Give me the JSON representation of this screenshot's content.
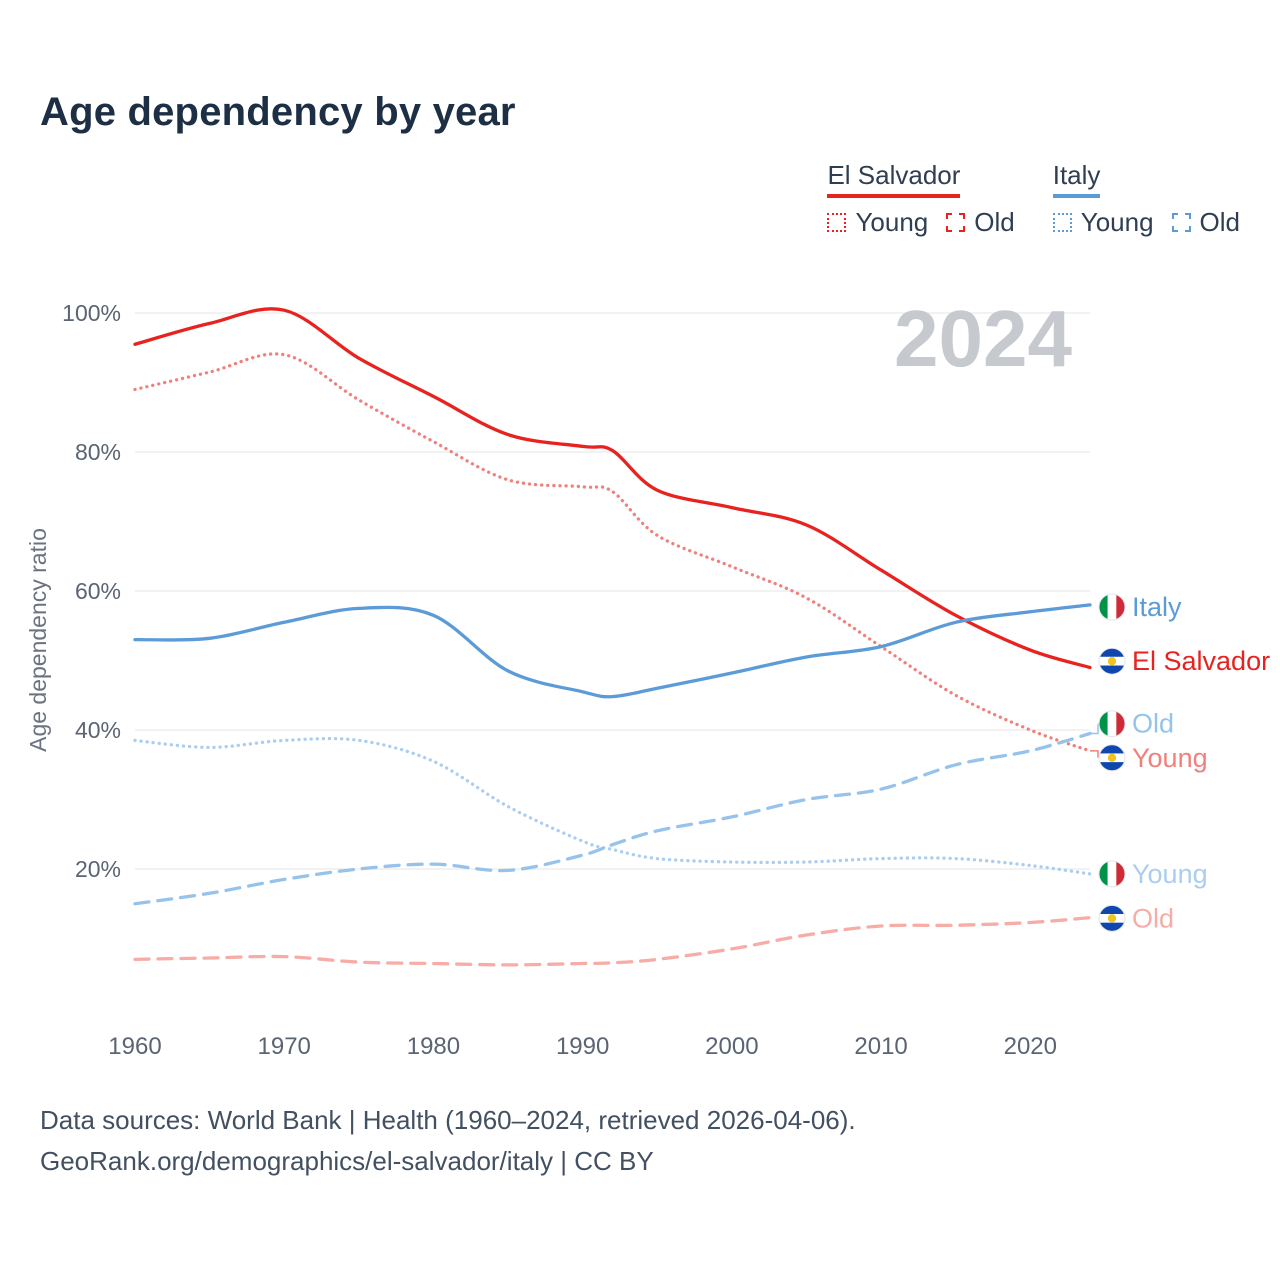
{
  "title": "Age dependency by year",
  "watermark": "2024",
  "legend": {
    "groups": [
      {
        "label": "El Salvador",
        "color": "#e8231f",
        "items": [
          {
            "label": "Young",
            "style": "dotted",
            "color": "#e8231f"
          },
          {
            "label": "Old",
            "style": "dashed",
            "color": "#e8231f"
          }
        ]
      },
      {
        "label": "Italy",
        "color": "#5b9bd8",
        "items": [
          {
            "label": "Young",
            "style": "dotted",
            "color": "#5b9bd8"
          },
          {
            "label": "Old",
            "style": "dashed",
            "color": "#5b9bd8"
          }
        ]
      }
    ]
  },
  "chart_data": {
    "type": "line",
    "title": "Age dependency by year",
    "ylabel": "Age dependency ratio",
    "xlabel": "",
    "ylim": [
      0,
      105
    ],
    "yticks": [
      20,
      40,
      60,
      80,
      100
    ],
    "xticks": [
      1960,
      1970,
      1980,
      1990,
      2000,
      2010,
      2020
    ],
    "grid": "horizontal",
    "legend_position": "top-right",
    "x": [
      1960,
      1965,
      1970,
      1975,
      1980,
      1985,
      1990,
      1992,
      1995,
      2000,
      2005,
      2010,
      2015,
      2020,
      2024
    ],
    "series": [
      {
        "name": "El Salvador total",
        "country": "El Salvador",
        "measure": "total",
        "color": "#e8231f",
        "style": "solid",
        "values": [
          95.5,
          98.5,
          100.4,
          93.5,
          88,
          82.5,
          80.8,
          80.2,
          74.5,
          72,
          69.5,
          63,
          56.5,
          51.5,
          49
        ]
      },
      {
        "name": "El Salvador young",
        "country": "El Salvador",
        "measure": "young",
        "color": "#f0807c",
        "style": "dotted",
        "values": [
          89,
          91.5,
          94,
          87.5,
          81.5,
          76,
          75,
          74.3,
          68,
          63.5,
          59,
          52,
          45,
          40,
          37
        ]
      },
      {
        "name": "El Salvador old",
        "country": "El Salvador",
        "measure": "old",
        "color": "#f7aca6",
        "style": "dashed",
        "values": [
          7,
          7.2,
          7.4,
          6.6,
          6.4,
          6.2,
          6.4,
          6.5,
          7,
          8.5,
          10.5,
          11.8,
          11.9,
          12.3,
          13
        ]
      },
      {
        "name": "Italy total",
        "country": "Italy",
        "measure": "total",
        "color": "#5b9bd8",
        "style": "solid",
        "values": [
          53,
          53.2,
          55.5,
          57.5,
          56.5,
          48.5,
          45.5,
          44.8,
          46,
          48.2,
          50.5,
          52,
          55.5,
          57,
          58
        ]
      },
      {
        "name": "Italy young",
        "country": "Italy",
        "measure": "young",
        "color": "#aacdf0",
        "style": "dotted",
        "values": [
          38.5,
          37.5,
          38.5,
          38.5,
          35.5,
          29,
          24,
          22.8,
          21.5,
          21,
          21,
          21.5,
          21.5,
          20.5,
          19.3
        ]
      },
      {
        "name": "Italy old",
        "country": "Italy",
        "measure": "old",
        "color": "#96c3ec",
        "style": "dashed",
        "values": [
          15,
          16.5,
          18.5,
          20,
          20.7,
          19.8,
          22,
          23.5,
          25.5,
          27.5,
          30,
          31.5,
          35,
          37,
          39.5
        ]
      }
    ]
  },
  "end_labels": [
    {
      "label": "Italy",
      "flag": "italy",
      "color": "#5b9bd8",
      "value": 57.7
    },
    {
      "label": "El Salvador",
      "flag": "el-salvador",
      "color": "#e8231f",
      "value": 49.9
    },
    {
      "label": "Old",
      "flag": "italy",
      "color": "#96c3ec",
      "value": 40.9,
      "connector": 39.5
    },
    {
      "label": "Young",
      "flag": "el-salvador",
      "color": "#f0807c",
      "value": 36.0,
      "connector": 37
    },
    {
      "label": "Young",
      "flag": "italy",
      "color": "#aacdf0",
      "value": 19.3
    },
    {
      "label": "Old",
      "flag": "el-salvador",
      "color": "#f7aca6",
      "value": 12.9
    }
  ],
  "footer": {
    "line1": "Data sources: World Bank | Health (1960–2024, retrieved 2026-04-06).",
    "line2": "GeoRank.org/demographics/el-salvador/italy | CC BY"
  }
}
